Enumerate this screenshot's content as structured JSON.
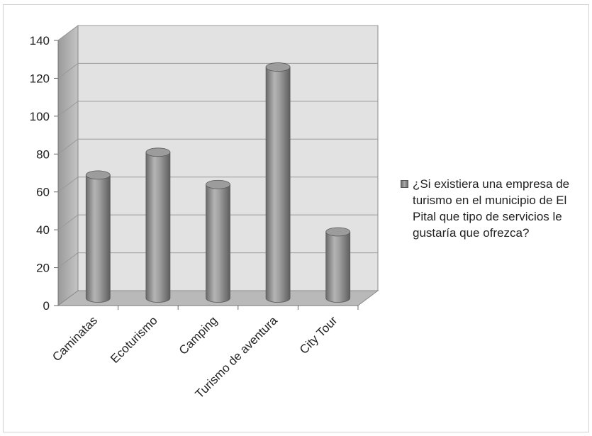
{
  "chart_data": {
    "type": "bar",
    "title": "",
    "xlabel": "",
    "ylabel": "",
    "categories": [
      "Caminatas",
      "Ecoturismo",
      "Camping",
      "Turismo de aventura",
      "City Tour"
    ],
    "series": [
      {
        "name": "¿Si existiera una empresa de turismo en el municipio de El Pital que tipo de servicios le gustaría que ofrezca?",
        "values": [
          65,
          77,
          60,
          122,
          35
        ]
      }
    ],
    "ylim": [
      0,
      140
    ],
    "yticks": [
      "0",
      "20",
      "40",
      "60",
      "80",
      "100",
      "120",
      "140"
    ],
    "grid": true,
    "legend_position": "right",
    "style": "3d-cylinder",
    "colors": {
      "bar": "#8c8c8c",
      "wall": "#dcdcdc",
      "floor": "#b8b8b8",
      "grid": "#9a9a9a"
    }
  }
}
